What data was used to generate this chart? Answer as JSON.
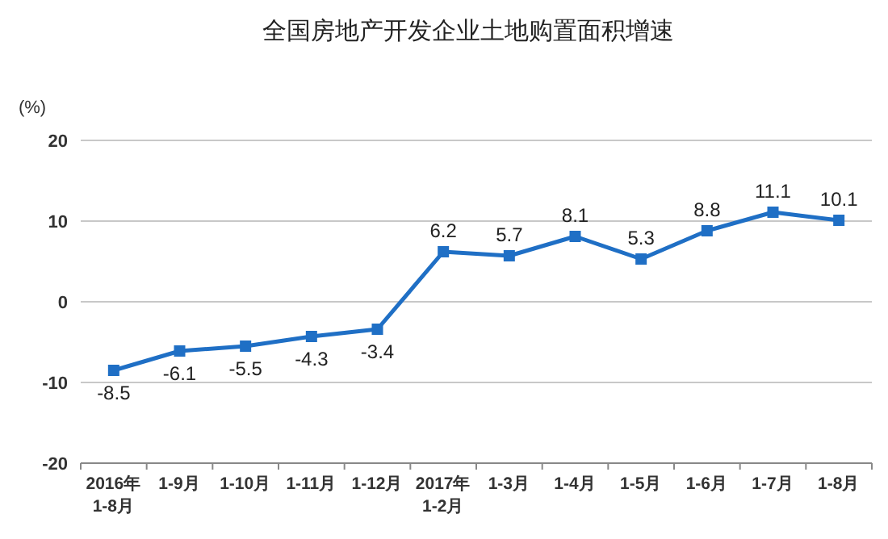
{
  "chart_data": {
    "type": "line",
    "title": "全国房地产开发企业土地购置面积增速",
    "ylabel": "(%)",
    "categories": [
      "2016年\n1-8月",
      "1-9月",
      "1-10月",
      "1-11月",
      "1-12月",
      "2017年\n1-2月",
      "1-3月",
      "1-4月",
      "1-5月",
      "1-6月",
      "1-7月",
      "1-8月"
    ],
    "series": [
      {
        "color": "#1f6fc5",
        "values": [
          -8.5,
          -6.1,
          -5.5,
          -4.3,
          -3.4,
          6.2,
          5.7,
          8.1,
          5.3,
          8.8,
          11.1,
          10.1
        ]
      }
    ],
    "ylim": [
      -20,
      20
    ],
    "yticks": [
      -20,
      -10,
      0,
      10,
      20
    ],
    "grid": "y",
    "marker": "square",
    "data_labels": true
  }
}
